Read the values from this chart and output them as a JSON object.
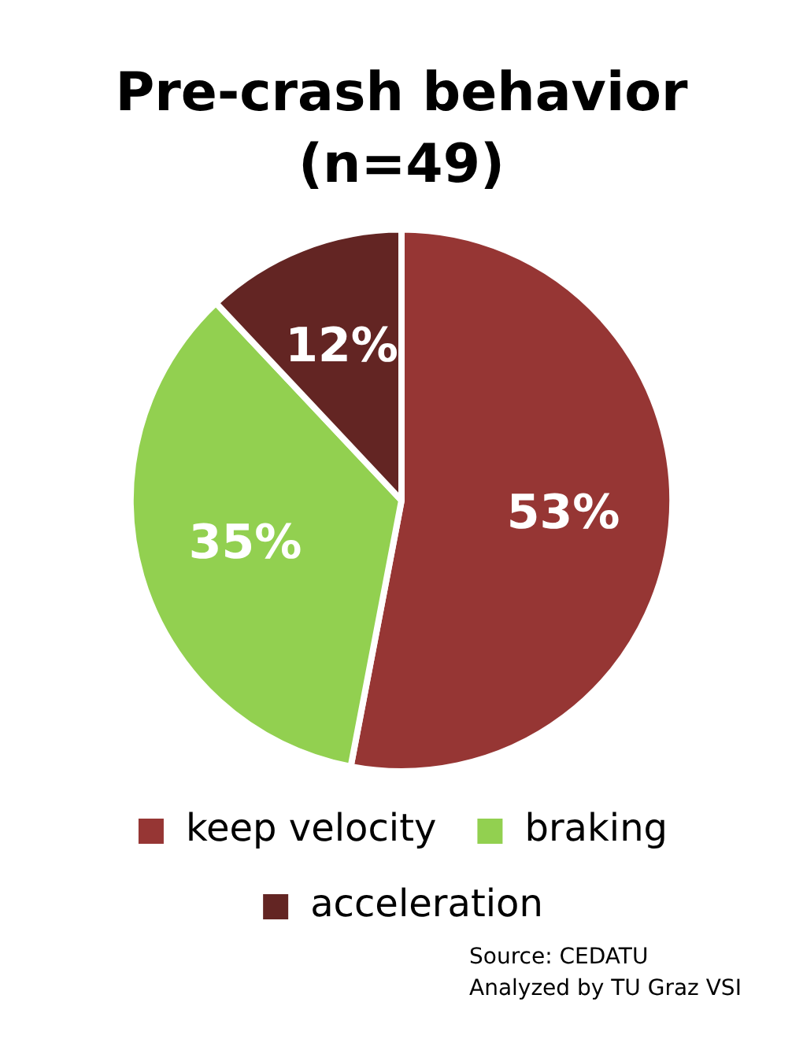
{
  "chart_data": {
    "type": "pie",
    "title": "Pre-crash behavior\n(n=49)",
    "categories": [
      "keep velocity",
      "braking",
      "acceleration"
    ],
    "values": [
      53,
      35,
      12
    ],
    "colors": [
      "#963634",
      "#92d050",
      "#632523"
    ],
    "value_labels": [
      "53%",
      "35%",
      "12%"
    ],
    "legend": "bottom",
    "annotations": [
      "Source: CEDATU",
      "Analyzed by TU Graz VSI"
    ]
  }
}
